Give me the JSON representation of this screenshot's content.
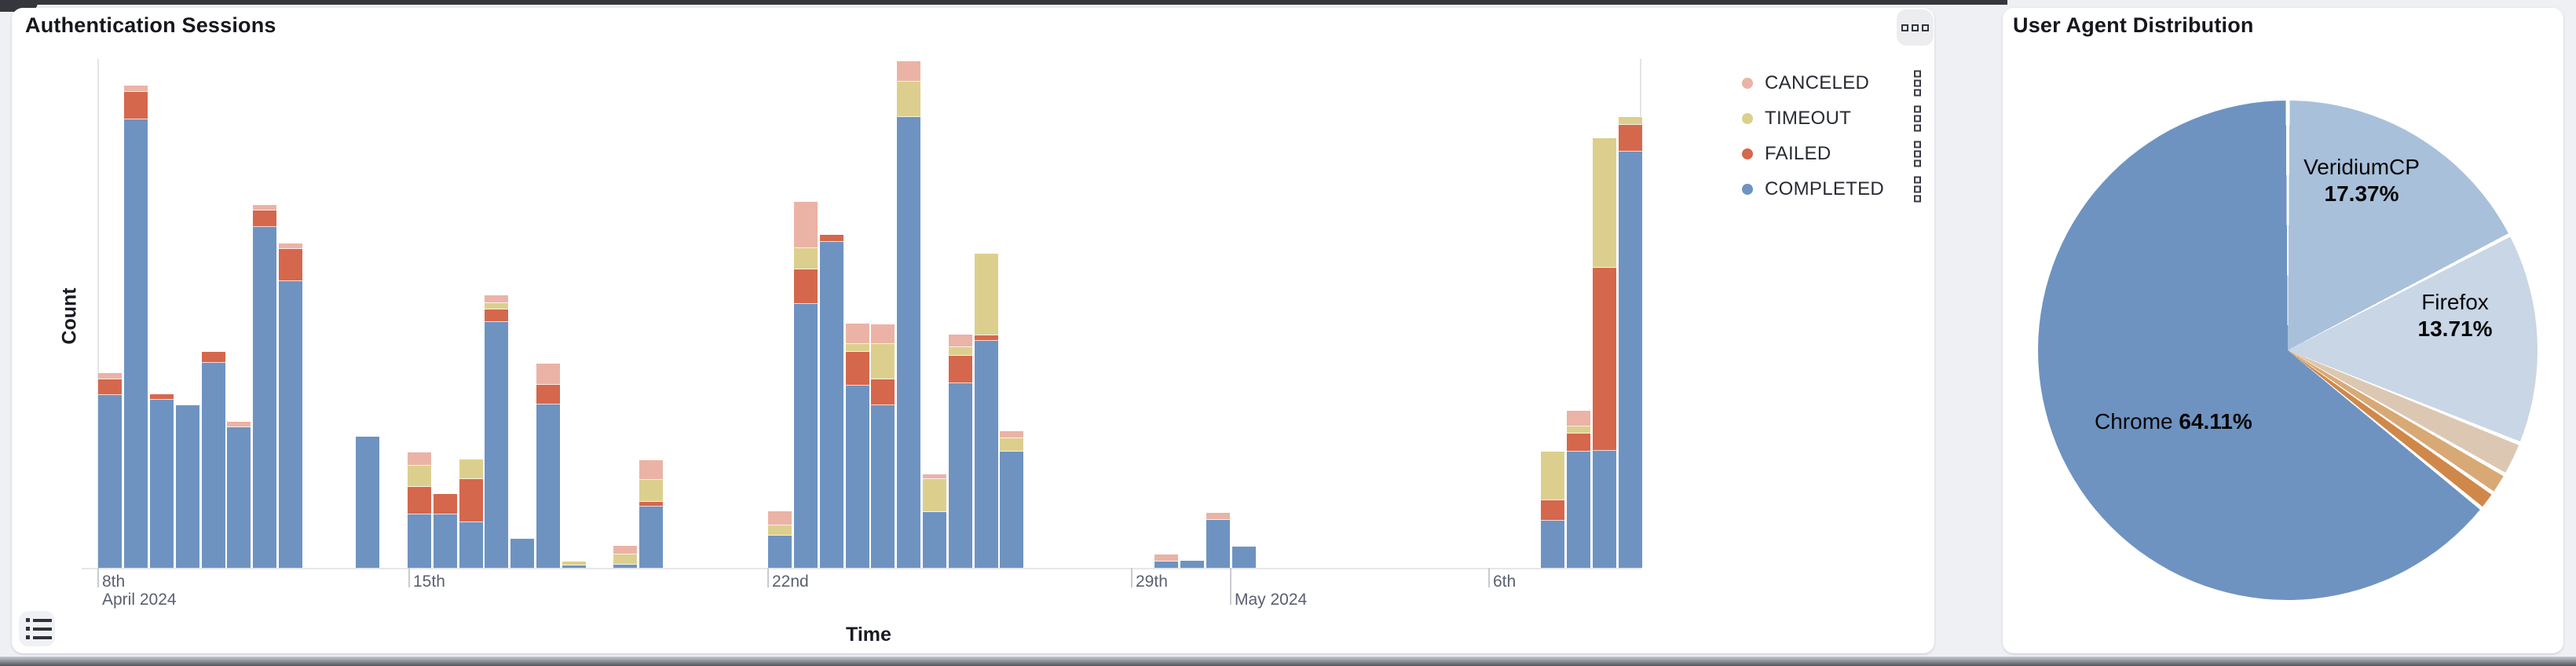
{
  "auth_chart": {
    "title": "Authentication Sessions",
    "x_axis_label": "Time",
    "y_axis_label": "Count",
    "legend": [
      {
        "label": "CANCELED",
        "key": "canceled",
        "color": "#eab3a6"
      },
      {
        "label": "TIMEOUT",
        "key": "timeout",
        "color": "#dccf8d"
      },
      {
        "label": "FAILED",
        "key": "failed",
        "color": "#d5674d"
      },
      {
        "label": "COMPLETED",
        "key": "completed",
        "color": "#6e93c1"
      }
    ]
  },
  "ua_chart": {
    "title": "User Agent Distribution"
  },
  "chart_data": [
    {
      "type": "bar",
      "stacked": true,
      "title": "Authentication Sessions",
      "xlabel": "Time",
      "ylabel": "Count",
      "x_axis_kind": "time, 12-hour bins, Apr 9 2024 - May 8 2024",
      "y_axis_labels_visible": false,
      "ylim": [
        0,
        648
      ],
      "value_unit": "relative height (no numeric y-axis labels shown in chart)",
      "series_order_bottom_to_top": [
        "completed",
        "failed",
        "timeout",
        "canceled"
      ],
      "x_ticks": [
        {
          "label": "8th",
          "sub": "April 2024",
          "x": 124,
          "long": false
        },
        {
          "label": "15th",
          "sub": "",
          "x": 520,
          "long": false
        },
        {
          "label": "22nd",
          "sub": "",
          "x": 977,
          "long": false
        },
        {
          "label": "29th",
          "sub": "",
          "x": 1440,
          "long": false
        },
        {
          "label": "",
          "sub": "May 2024",
          "x": 1566,
          "long": true
        },
        {
          "label": "6th",
          "sub": "",
          "x": 1895,
          "long": false
        }
      ],
      "bars": [
        {
          "slot": 0,
          "approx_date": "Apr 9 AM",
          "completed": 220,
          "failed": 20,
          "timeout": 0,
          "canceled": 8
        },
        {
          "slot": 1,
          "approx_date": "Apr 9 PM",
          "completed": 571,
          "failed": 35,
          "timeout": 0,
          "canceled": 8
        },
        {
          "slot": 2,
          "approx_date": "Apr 10 AM",
          "completed": 214,
          "failed": 7,
          "timeout": 0,
          "canceled": 0
        },
        {
          "slot": 3,
          "approx_date": "Apr 10 PM",
          "completed": 207,
          "failed": 0,
          "timeout": 0,
          "canceled": 0
        },
        {
          "slot": 4,
          "approx_date": "Apr 11 AM",
          "completed": 261,
          "failed": 14,
          "timeout": 0,
          "canceled": 0
        },
        {
          "slot": 5,
          "approx_date": "Apr 11 PM",
          "completed": 179,
          "failed": 0,
          "timeout": 0,
          "canceled": 7
        },
        {
          "slot": 6,
          "approx_date": "Apr 12 AM",
          "completed": 434,
          "failed": 21,
          "timeout": 0,
          "canceled": 7
        },
        {
          "slot": 7,
          "approx_date": "Apr 12 PM",
          "completed": 365,
          "failed": 41,
          "timeout": 0,
          "canceled": 7
        },
        {
          "slot": 10,
          "approx_date": "Apr 14 AM",
          "completed": 167,
          "failed": 0,
          "timeout": 0,
          "canceled": 0
        },
        {
          "slot": 12,
          "approx_date": "Apr 15 AM",
          "completed": 68,
          "failed": 35,
          "timeout": 27,
          "canceled": 17
        },
        {
          "slot": 13,
          "approx_date": "Apr 15 PM",
          "completed": 68,
          "failed": 26,
          "timeout": 0,
          "canceled": 0
        },
        {
          "slot": 14,
          "approx_date": "Apr 16 AM",
          "completed": 58,
          "failed": 55,
          "timeout": 25,
          "canceled": 0
        },
        {
          "slot": 15,
          "approx_date": "Apr 16 PM",
          "completed": 313,
          "failed": 16,
          "timeout": 8,
          "canceled": 10
        },
        {
          "slot": 16,
          "approx_date": "Apr 17 AM",
          "completed": 37,
          "failed": 0,
          "timeout": 0,
          "canceled": 0
        },
        {
          "slot": 17,
          "approx_date": "Apr 17 PM",
          "completed": 208,
          "failed": 25,
          "timeout": 0,
          "canceled": 27
        },
        {
          "slot": 18,
          "approx_date": "Apr 18 AM",
          "completed": 3,
          "failed": 0,
          "timeout": 5,
          "canceled": 0
        },
        {
          "slot": 20,
          "approx_date": "Apr 19 AM",
          "completed": 4,
          "failed": 0,
          "timeout": 13,
          "canceled": 11
        },
        {
          "slot": 21,
          "approx_date": "Apr 19 PM",
          "completed": 78,
          "failed": 6,
          "timeout": 28,
          "canceled": 25
        },
        {
          "slot": 26,
          "approx_date": "Apr 22 AM",
          "completed": 41,
          "failed": 0,
          "timeout": 13,
          "canceled": 18
        },
        {
          "slot": 27,
          "approx_date": "Apr 22 PM",
          "completed": 336,
          "failed": 44,
          "timeout": 27,
          "canceled": 59
        },
        {
          "slot": 28,
          "approx_date": "Apr 23 AM",
          "completed": 415,
          "failed": 9,
          "timeout": 0,
          "canceled": 0
        },
        {
          "slot": 29,
          "approx_date": "Apr 23 PM",
          "completed": 232,
          "failed": 43,
          "timeout": 10,
          "canceled": 26
        },
        {
          "slot": 30,
          "approx_date": "Apr 24 AM",
          "completed": 207,
          "failed": 33,
          "timeout": 45,
          "canceled": 25
        },
        {
          "slot": 31,
          "approx_date": "Apr 24 PM",
          "completed": 574,
          "failed": 0,
          "timeout": 45,
          "canceled": 26
        },
        {
          "slot": 32,
          "approx_date": "Apr 25 AM",
          "completed": 71,
          "failed": 0,
          "timeout": 42,
          "canceled": 6
        },
        {
          "slot": 33,
          "approx_date": "Apr 25 PM",
          "completed": 235,
          "failed": 35,
          "timeout": 11,
          "canceled": 16
        },
        {
          "slot": 34,
          "approx_date": "Apr 26 AM",
          "completed": 289,
          "failed": 7,
          "timeout": 104,
          "canceled": 0
        },
        {
          "slot": 35,
          "approx_date": "Apr 26 PM",
          "completed": 148,
          "failed": 0,
          "timeout": 17,
          "canceled": 9
        },
        {
          "slot": 41,
          "approx_date": "Apr 29 PM",
          "completed": 8,
          "failed": 0,
          "timeout": 0,
          "canceled": 9
        },
        {
          "slot": 42,
          "approx_date": "Apr 30 AM",
          "completed": 9,
          "failed": 0,
          "timeout": 0,
          "canceled": 0
        },
        {
          "slot": 43,
          "approx_date": "Apr 30 PM",
          "completed": 61,
          "failed": 0,
          "timeout": 0,
          "canceled": 9
        },
        {
          "slot": 44,
          "approx_date": "May 1 AM",
          "completed": 27,
          "failed": 0,
          "timeout": 0,
          "canceled": 0
        },
        {
          "slot": 56,
          "approx_date": "May 7 AM",
          "completed": 60,
          "failed": 26,
          "timeout": 62,
          "canceled": 0
        },
        {
          "slot": 57,
          "approx_date": "May 7 PM",
          "completed": 148,
          "failed": 23,
          "timeout": 9,
          "canceled": 20
        },
        {
          "slot": 58,
          "approx_date": "May 8 AM",
          "completed": 149,
          "failed": 233,
          "timeout": 165,
          "canceled": 0
        },
        {
          "slot": 59,
          "approx_date": "May 8 PM",
          "completed": 530,
          "failed": 34,
          "timeout": 10,
          "canceled": 0
        }
      ]
    },
    {
      "type": "pie",
      "title": "User Agent Distribution",
      "legend_position": "none",
      "clockwise_from_top": true,
      "slices": [
        {
          "name": "VeridiumCP",
          "pct": 17.37,
          "color": "#a9c0da",
          "labeled": true
        },
        {
          "name": "Firefox",
          "pct": 13.71,
          "color": "#c8d6e6",
          "labeled": true
        },
        {
          "name": "(unlabeled)",
          "pct": 2.2,
          "color": "#dcc8b2",
          "labeled": false
        },
        {
          "name": "(unlabeled)",
          "pct": 1.4,
          "color": "#d9a975",
          "labeled": false
        },
        {
          "name": "(unlabeled)",
          "pct": 1.21,
          "color": "#d0884a",
          "labeled": false
        },
        {
          "name": "Chrome",
          "pct": 64.11,
          "color": "#6e93c1",
          "labeled": true
        }
      ]
    }
  ]
}
